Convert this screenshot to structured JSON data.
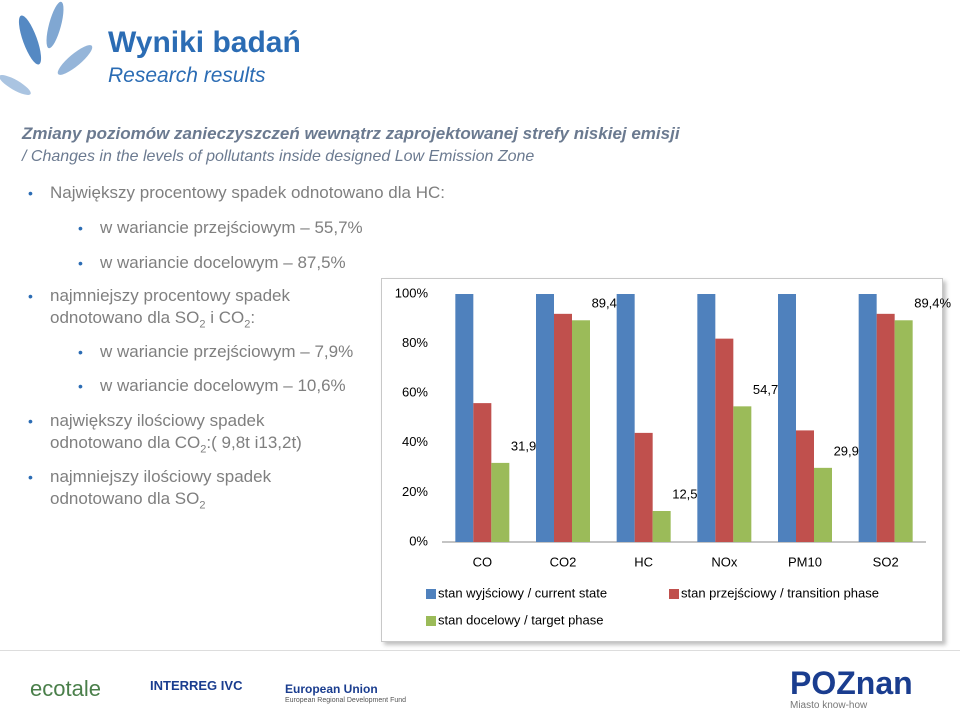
{
  "header": {
    "title": "Wyniki badań",
    "subtitle": "Research results"
  },
  "heading": {
    "title": "Zmiany poziomów zanieczyszczeń wewnątrz zaprojektowanej strefy niskiej emisji",
    "subtitle": "/ Changes in the levels of pollutants inside designed Low Emission Zone"
  },
  "bullets": [
    {
      "parts": [
        "Największy procentowy spadek odnotowano dla HC:"
      ],
      "items": [
        {
          "parts": [
            "w wariancie przejściowym – 55,7%"
          ]
        },
        {
          "parts": [
            "w wariancie docelowym – 87,5%"
          ]
        }
      ]
    },
    {
      "parts": [
        "najmniejszy procentowy spadek odnotowano dla SO",
        "2",
        " i CO",
        "2",
        ":"
      ],
      "items": [
        {
          "parts": [
            "w wariancie przejściowym – 7,9%"
          ]
        },
        {
          "parts": [
            "w wariancie docelowym – 10,6%"
          ]
        }
      ]
    },
    {
      "parts": [
        "największy ilościowy spadek odnotowano dla CO",
        "2",
        ":( 9,8t i13,2t)"
      ],
      "items": []
    },
    {
      "parts": [
        "najmniejszy ilościowy spadek odnotowano dla SO",
        "2"
      ],
      "items": []
    }
  ],
  "chart_data": {
    "type": "bar",
    "categories": [
      "CO",
      "CO2",
      "HC",
      "NOx",
      "PM10",
      "SO2"
    ],
    "series": [
      {
        "name": "stan wyjściowy / current state",
        "color": "#4f81bd",
        "values": [
          100,
          100,
          100,
          100,
          100,
          100
        ]
      },
      {
        "name": "stan przejściowy / transition phase",
        "color": "#c0504d",
        "values": [
          56,
          92,
          44,
          82,
          45,
          92
        ]
      },
      {
        "name": "stan docelowy / target phase",
        "color": "#9bbb59",
        "values": [
          31.9,
          89.4,
          12.5,
          54.7,
          29.9,
          89.4
        ],
        "value_labels": [
          "31,9%",
          "89,4%",
          "12,5%",
          "54,7%",
          "29,9%",
          "89,4%"
        ]
      }
    ],
    "ylim": [
      0,
      100
    ],
    "yticks": [
      {
        "value": 0,
        "label": "0%"
      },
      {
        "value": 20,
        "label": "20%"
      },
      {
        "value": 40,
        "label": "40%"
      },
      {
        "value": 60,
        "label": "60%"
      },
      {
        "value": 80,
        "label": "80%"
      },
      {
        "value": 100,
        "label": "100%"
      }
    ],
    "grid": false,
    "legend": "bottom"
  },
  "footer": {
    "logos": [
      "ecotale",
      "INTERREG IVC",
      "European Union",
      "European Regional Development Fund",
      "POZnan",
      "Miasto know-how"
    ]
  }
}
